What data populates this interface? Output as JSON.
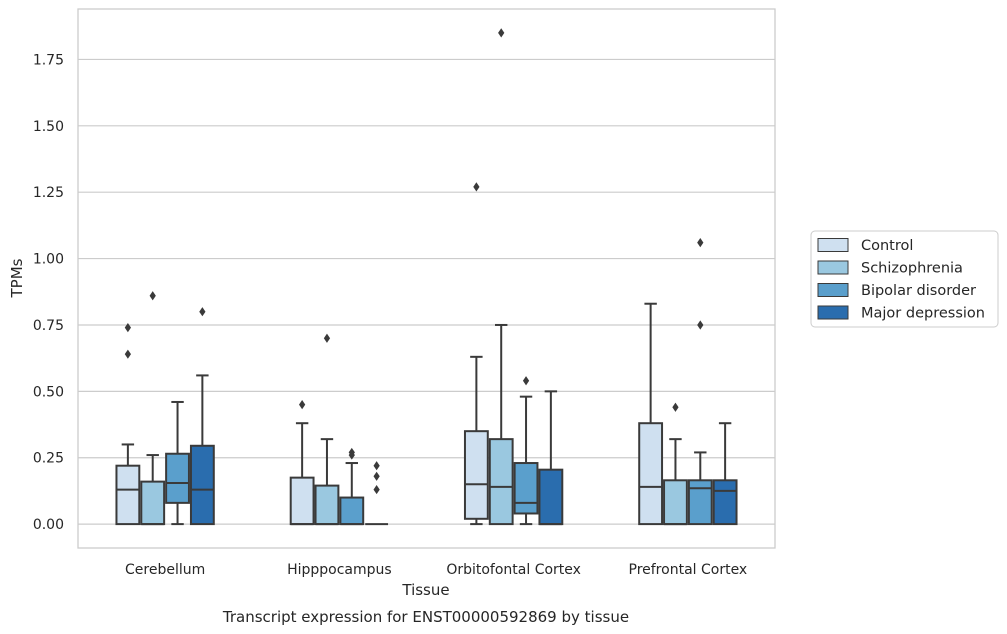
{
  "chart_data": {
    "type": "box",
    "caption": "Transcript expression for ENST00000592869 by tissue",
    "xlabel": "Tissue",
    "ylabel": "TPMs",
    "ylim": [
      -0.09,
      1.94
    ],
    "yticks": [
      "0.00",
      "0.25",
      "0.50",
      "0.75",
      "1.00",
      "1.25",
      "1.50",
      "1.75"
    ],
    "ytick_values": [
      0,
      0.25,
      0.5,
      0.75,
      1.0,
      1.25,
      1.5,
      1.75
    ],
    "grid": "horizontal",
    "legend_position": "right",
    "categories": [
      "Cerebellum",
      "Hipppocampus",
      "Orbitofontal Cortex",
      "Prefrontal Cortex"
    ],
    "series": [
      {
        "name": "Control",
        "color": "#cfe0f0",
        "boxes": [
          {
            "whislo": 0.0,
            "q1": 0.0,
            "med": 0.13,
            "q3": 0.22,
            "whishi": 0.3,
            "fliers": [
              0.64,
              0.74
            ]
          },
          {
            "whislo": 0.0,
            "q1": 0.0,
            "med": 0.0,
            "q3": 0.175,
            "whishi": 0.38,
            "fliers": [
              0.45
            ]
          },
          {
            "whislo": 0.0,
            "q1": 0.02,
            "med": 0.15,
            "q3": 0.35,
            "whishi": 0.63,
            "fliers": [
              1.27
            ]
          },
          {
            "whislo": 0.0,
            "q1": 0.0,
            "med": 0.14,
            "q3": 0.38,
            "whishi": 0.83,
            "fliers": []
          }
        ]
      },
      {
        "name": "Schizophrenia",
        "color": "#9ac8e0",
        "boxes": [
          {
            "whislo": 0.0,
            "q1": 0.0,
            "med": 0.0,
            "q3": 0.16,
            "whishi": 0.26,
            "fliers": [
              0.86
            ]
          },
          {
            "whislo": 0.0,
            "q1": 0.0,
            "med": 0.0,
            "q3": 0.145,
            "whishi": 0.32,
            "fliers": [
              0.7
            ]
          },
          {
            "whislo": 0.0,
            "q1": 0.0,
            "med": 0.14,
            "q3": 0.32,
            "whishi": 0.75,
            "fliers": [
              1.85
            ]
          },
          {
            "whislo": 0.0,
            "q1": 0.0,
            "med": 0.0,
            "q3": 0.165,
            "whishi": 0.32,
            "fliers": [
              0.44
            ]
          }
        ]
      },
      {
        "name": "Bipolar disorder",
        "color": "#5a9fcc",
        "boxes": [
          {
            "whislo": 0.0,
            "q1": 0.08,
            "med": 0.155,
            "q3": 0.265,
            "whishi": 0.46,
            "fliers": []
          },
          {
            "whislo": 0.0,
            "q1": 0.0,
            "med": 0.0,
            "q3": 0.1,
            "whishi": 0.23,
            "fliers": [
              0.26,
              0.27
            ]
          },
          {
            "whislo": 0.0,
            "q1": 0.04,
            "med": 0.08,
            "q3": 0.23,
            "whishi": 0.48,
            "fliers": [
              0.54
            ]
          },
          {
            "whislo": 0.0,
            "q1": 0.0,
            "med": 0.135,
            "q3": 0.165,
            "whishi": 0.27,
            "fliers": [
              0.75,
              1.06
            ]
          }
        ]
      },
      {
        "name": "Major depression",
        "color": "#2a6dae",
        "boxes": [
          {
            "whislo": 0.0,
            "q1": 0.0,
            "med": 0.13,
            "q3": 0.295,
            "whishi": 0.56,
            "fliers": [
              0.8
            ]
          },
          {
            "whislo": 0.0,
            "q1": 0.0,
            "med": 0.0,
            "q3": 0.0,
            "whishi": 0.0,
            "fliers": [
              0.13,
              0.18,
              0.22
            ]
          },
          {
            "whislo": 0.0,
            "q1": 0.0,
            "med": 0.0,
            "q3": 0.205,
            "whishi": 0.5,
            "fliers": []
          },
          {
            "whislo": 0.0,
            "q1": 0.0,
            "med": 0.125,
            "q3": 0.165,
            "whishi": 0.38,
            "fliers": []
          }
        ]
      }
    ]
  }
}
